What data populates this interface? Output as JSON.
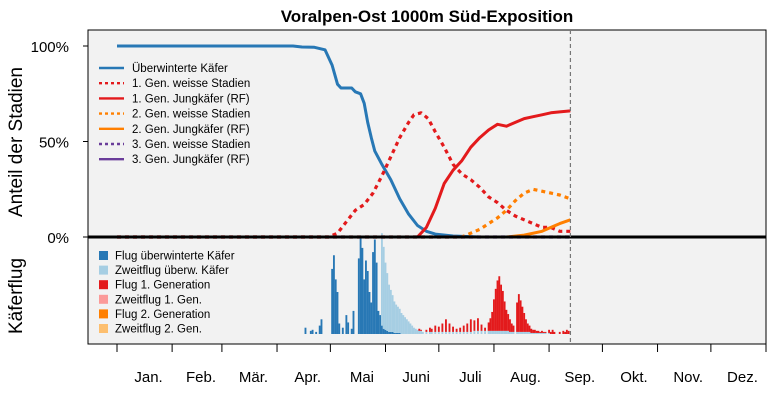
{
  "chart_data": {
    "type": "line",
    "title": "Voralpen-Ost 1000m Süd-Exposition",
    "ylabel_top": "Anteil der Stadien",
    "ylabel_bottom": "Käferflug",
    "yticks": [
      "100%",
      "50%",
      "0%"
    ],
    "ytick_values": [
      100,
      50,
      0
    ],
    "months": [
      "Jan.",
      "Feb.",
      "Mär.",
      "Apr.",
      "Mai",
      "Juni",
      "Juli",
      "Aug.",
      "Sep.",
      "Okt.",
      "Nov.",
      "Dez."
    ],
    "x_unit": "day of year",
    "xlim": [
      1,
      366
    ],
    "ylim": [
      0,
      100
    ],
    "current_day": 256,
    "grid": false,
    "legend_top_position": "top-left",
    "legend_bottom_position": "bottom-left",
    "series": [
      {
        "name": "Überwinterte Käfer",
        "color": "#2878b5",
        "style": "solid",
        "points": [
          [
            1,
            100
          ],
          [
            100,
            100
          ],
          [
            105,
            99.5
          ],
          [
            112,
            99.3
          ],
          [
            118,
            98
          ],
          [
            122,
            90
          ],
          [
            125,
            80
          ],
          [
            127,
            78
          ],
          [
            133,
            78
          ],
          [
            135,
            76
          ],
          [
            138,
            75
          ],
          [
            140,
            70
          ],
          [
            142,
            60
          ],
          [
            144,
            52
          ],
          [
            146,
            45
          ],
          [
            150,
            38
          ],
          [
            155,
            30
          ],
          [
            160,
            20
          ],
          [
            165,
            12
          ],
          [
            170,
            6
          ],
          [
            175,
            3
          ],
          [
            180,
            1.5
          ],
          [
            190,
            0.5
          ],
          [
            205,
            0
          ]
        ]
      },
      {
        "name": "1. Gen. weisse Stadien",
        "color": "#e31a1c",
        "style": "dotted",
        "points": [
          [
            1,
            0
          ],
          [
            120,
            0
          ],
          [
            125,
            2
          ],
          [
            130,
            8
          ],
          [
            135,
            14
          ],
          [
            140,
            17
          ],
          [
            145,
            23
          ],
          [
            150,
            32
          ],
          [
            155,
            42
          ],
          [
            160,
            52
          ],
          [
            165,
            60
          ],
          [
            168,
            64
          ],
          [
            172,
            65
          ],
          [
            176,
            62
          ],
          [
            180,
            55
          ],
          [
            185,
            47
          ],
          [
            190,
            38
          ],
          [
            195,
            33
          ],
          [
            200,
            30
          ],
          [
            205,
            26
          ],
          [
            210,
            21
          ],
          [
            215,
            18
          ],
          [
            220,
            14
          ],
          [
            225,
            11
          ],
          [
            230,
            9
          ],
          [
            235,
            7
          ],
          [
            240,
            5
          ],
          [
            245,
            5
          ],
          [
            250,
            3
          ],
          [
            256,
            3
          ]
        ]
      },
      {
        "name": "1. Gen. Jungkäfer (RF)",
        "color": "#e31a1c",
        "style": "solid",
        "points": [
          [
            1,
            0
          ],
          [
            170,
            0
          ],
          [
            175,
            5
          ],
          [
            180,
            15
          ],
          [
            185,
            28
          ],
          [
            190,
            35
          ],
          [
            195,
            40
          ],
          [
            200,
            47
          ],
          [
            205,
            52
          ],
          [
            210,
            56
          ],
          [
            215,
            59
          ],
          [
            220,
            58
          ],
          [
            225,
            60
          ],
          [
            230,
            62
          ],
          [
            235,
            63
          ],
          [
            240,
            64
          ],
          [
            245,
            65
          ],
          [
            250,
            65.5
          ],
          [
            256,
            66
          ]
        ]
      },
      {
        "name": "2. Gen. weisse Stadien",
        "color": "#ff7f00",
        "style": "dotted",
        "points": [
          [
            1,
            0
          ],
          [
            195,
            0
          ],
          [
            200,
            2
          ],
          [
            205,
            4
          ],
          [
            210,
            7
          ],
          [
            215,
            10
          ],
          [
            220,
            14
          ],
          [
            225,
            19
          ],
          [
            230,
            23
          ],
          [
            235,
            25
          ],
          [
            240,
            24
          ],
          [
            245,
            23
          ],
          [
            250,
            22
          ],
          [
            256,
            20
          ]
        ]
      },
      {
        "name": "2. Gen. Jungkäfer (RF)",
        "color": "#ff7f00",
        "style": "solid",
        "points": [
          [
            1,
            0
          ],
          [
            220,
            0
          ],
          [
            230,
            1
          ],
          [
            240,
            3
          ],
          [
            245,
            5
          ],
          [
            250,
            7
          ],
          [
            256,
            9
          ]
        ]
      },
      {
        "name": "3. Gen. weisse Stadien",
        "color": "#6a3d9a",
        "style": "dotted",
        "points": [
          [
            1,
            0
          ],
          [
            256,
            0
          ]
        ]
      },
      {
        "name": "3. Gen. Jungkäfer (RF)",
        "color": "#6a3d9a",
        "style": "solid",
        "points": [
          [
            1,
            0
          ],
          [
            256,
            0
          ]
        ]
      }
    ],
    "flight_series": [
      {
        "name": "Flug überwinterte Käfer",
        "color": "#2878b5"
      },
      {
        "name": "Zweitflug überw. Käfer",
        "color": "#a6cee3"
      },
      {
        "name": "Flug 1. Generation",
        "color": "#e31a1c"
      },
      {
        "name": "Zweitflug 1. Gen.",
        "color": "#fb9a99"
      },
      {
        "name": "Flug 2. Generation",
        "color": "#ff7f00"
      },
      {
        "name": "Zweitflug 2. Gen.",
        "color": "#fdbf6f"
      }
    ],
    "flight_bars": [
      [
        104,
        0,
        0,
        0
      ],
      [
        106,
        0,
        0,
        0
      ],
      [
        107,
        6,
        0,
        0
      ],
      [
        110,
        3,
        0,
        0
      ],
      [
        111,
        4,
        0,
        0
      ],
      [
        112,
        0,
        0,
        0
      ],
      [
        113,
        2,
        0,
        0
      ],
      [
        115,
        8,
        0,
        0
      ],
      [
        116,
        14,
        0,
        0
      ],
      [
        122,
        62,
        0,
        0
      ],
      [
        123,
        75,
        0,
        0
      ],
      [
        124,
        52,
        0,
        0
      ],
      [
        125,
        40,
        0,
        0
      ],
      [
        126,
        10,
        0,
        0
      ],
      [
        128,
        6,
        0,
        0
      ],
      [
        130,
        18,
        0,
        0
      ],
      [
        131,
        11,
        0,
        0
      ],
      [
        133,
        5,
        0,
        0
      ],
      [
        134,
        22,
        0,
        0
      ],
      [
        137,
        72,
        0,
        0
      ],
      [
        138,
        92,
        0,
        0
      ],
      [
        139,
        82,
        0,
        0
      ],
      [
        140,
        52,
        0,
        0
      ],
      [
        141,
        70,
        0,
        0
      ],
      [
        142,
        60,
        0,
        0
      ],
      [
        143,
        40,
        0,
        0
      ],
      [
        144,
        30,
        0,
        0
      ],
      [
        145,
        78,
        0,
        0
      ],
      [
        146,
        90,
        0,
        0
      ],
      [
        147,
        68,
        0,
        0
      ],
      [
        148,
        22,
        0,
        0
      ],
      [
        149,
        18,
        0,
        0
      ],
      [
        150,
        8,
        88,
        0
      ],
      [
        151,
        5,
        78,
        0
      ],
      [
        152,
        4,
        64,
        0
      ],
      [
        153,
        3,
        55,
        0
      ],
      [
        154,
        2,
        45,
        0
      ],
      [
        155,
        2,
        40,
        0
      ],
      [
        156,
        2,
        35,
        0
      ],
      [
        157,
        1,
        30,
        0
      ],
      [
        158,
        1,
        27,
        0
      ],
      [
        159,
        1,
        25,
        0
      ],
      [
        160,
        1,
        23,
        0
      ],
      [
        161,
        0,
        20,
        0
      ],
      [
        162,
        0,
        18,
        0
      ],
      [
        163,
        0,
        16,
        0
      ],
      [
        164,
        0,
        14,
        0
      ],
      [
        165,
        0,
        12,
        0
      ],
      [
        166,
        0,
        10,
        0
      ],
      [
        167,
        0,
        8,
        0
      ],
      [
        168,
        0,
        6,
        0
      ],
      [
        169,
        0,
        5,
        0
      ],
      [
        170,
        0,
        4,
        0
      ],
      [
        171,
        0,
        3,
        2
      ],
      [
        172,
        0,
        3,
        1
      ],
      [
        173,
        0,
        2,
        0
      ],
      [
        175,
        0,
        2,
        2
      ],
      [
        177,
        0,
        2,
        4
      ],
      [
        178,
        0,
        2,
        3
      ],
      [
        180,
        0,
        2,
        6
      ],
      [
        182,
        0,
        2,
        5
      ],
      [
        184,
        0,
        2,
        8
      ],
      [
        186,
        0,
        2,
        12
      ],
      [
        188,
        0,
        2,
        8
      ],
      [
        190,
        0,
        2,
        5
      ],
      [
        192,
        0,
        2,
        3
      ],
      [
        194,
        0,
        2,
        4
      ],
      [
        196,
        0,
        2,
        6
      ],
      [
        198,
        0,
        2,
        8
      ],
      [
        200,
        0,
        2,
        12
      ],
      [
        202,
        0,
        3,
        10
      ],
      [
        204,
        0,
        3,
        12
      ],
      [
        206,
        0,
        3,
        6
      ],
      [
        208,
        0,
        3,
        3
      ],
      [
        210,
        0,
        3,
        8
      ],
      [
        211,
        0,
        3,
        12
      ],
      [
        212,
        0,
        3,
        18
      ],
      [
        213,
        0,
        3,
        30
      ],
      [
        214,
        0,
        3,
        40
      ],
      [
        215,
        0,
        3,
        48
      ],
      [
        216,
        0,
        3,
        52
      ],
      [
        217,
        0,
        3,
        44
      ],
      [
        218,
        0,
        3,
        38
      ],
      [
        219,
        0,
        3,
        28
      ],
      [
        220,
        0,
        3,
        20
      ],
      [
        221,
        0,
        3,
        16
      ],
      [
        222,
        0,
        2,
        12
      ],
      [
        223,
        0,
        2,
        8
      ],
      [
        224,
        0,
        2,
        6
      ],
      [
        226,
        0,
        2,
        28
      ],
      [
        227,
        0,
        2,
        36
      ],
      [
        228,
        0,
        2,
        30
      ],
      [
        229,
        0,
        2,
        24
      ],
      [
        230,
        0,
        2,
        18
      ],
      [
        231,
        0,
        2,
        12
      ],
      [
        232,
        0,
        2,
        8
      ],
      [
        233,
        0,
        2,
        6
      ],
      [
        234,
        0,
        1,
        4
      ],
      [
        235,
        0,
        1,
        3
      ],
      [
        236,
        0,
        1,
        3
      ],
      [
        237,
        0,
        1,
        2
      ],
      [
        238,
        0,
        1,
        2
      ],
      [
        239,
        0,
        1,
        1
      ],
      [
        240,
        0,
        1,
        2
      ],
      [
        241,
        0,
        1,
        1
      ],
      [
        242,
        0,
        1,
        1
      ],
      [
        244,
        0,
        1,
        3
      ],
      [
        245,
        0,
        0,
        2
      ],
      [
        246,
        0,
        0,
        4
      ],
      [
        247,
        0,
        0,
        2
      ],
      [
        250,
        0,
        0,
        2
      ],
      [
        252,
        0,
        0,
        3
      ],
      [
        253,
        0,
        0,
        2
      ],
      [
        254,
        0,
        0,
        4
      ],
      [
        255,
        0,
        0,
        3
      ]
    ]
  }
}
